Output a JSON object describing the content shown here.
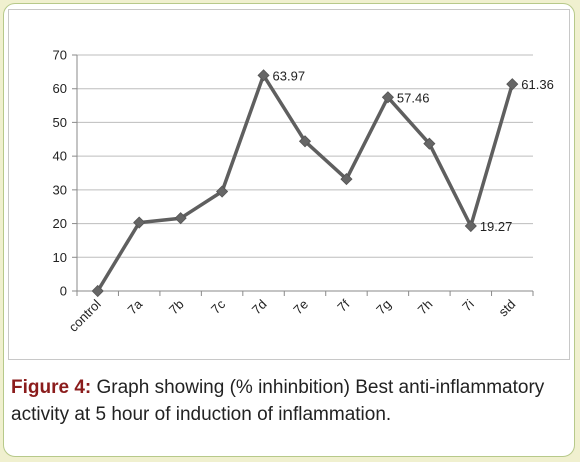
{
  "chart_data": {
    "type": "line",
    "categories": [
      "control",
      "7a",
      "7b",
      "7c",
      "7d",
      "7e",
      "7f",
      "7g",
      "7h",
      "7i",
      "std"
    ],
    "values": [
      0,
      20.3,
      21.6,
      29.5,
      63.97,
      44.4,
      33.2,
      57.46,
      43.7,
      19.27,
      61.36
    ],
    "data_labels": [
      {
        "index": 4,
        "text": "63.97"
      },
      {
        "index": 7,
        "text": "57.46"
      },
      {
        "index": 9,
        "text": "19.27"
      },
      {
        "index": 10,
        "text": "61.36"
      }
    ],
    "yticks": [
      "0",
      "10",
      "20",
      "30",
      "40",
      "50",
      "60",
      "70"
    ],
    "ylim": [
      0,
      70
    ],
    "grid": true,
    "legend": "none",
    "line_color": "#5f5f5f"
  },
  "caption": {
    "label": "Figure 4:",
    "text": " Graph showing (% inhinbition) Best anti-inflammatory activity at 5 hour of induction of inflammation."
  }
}
